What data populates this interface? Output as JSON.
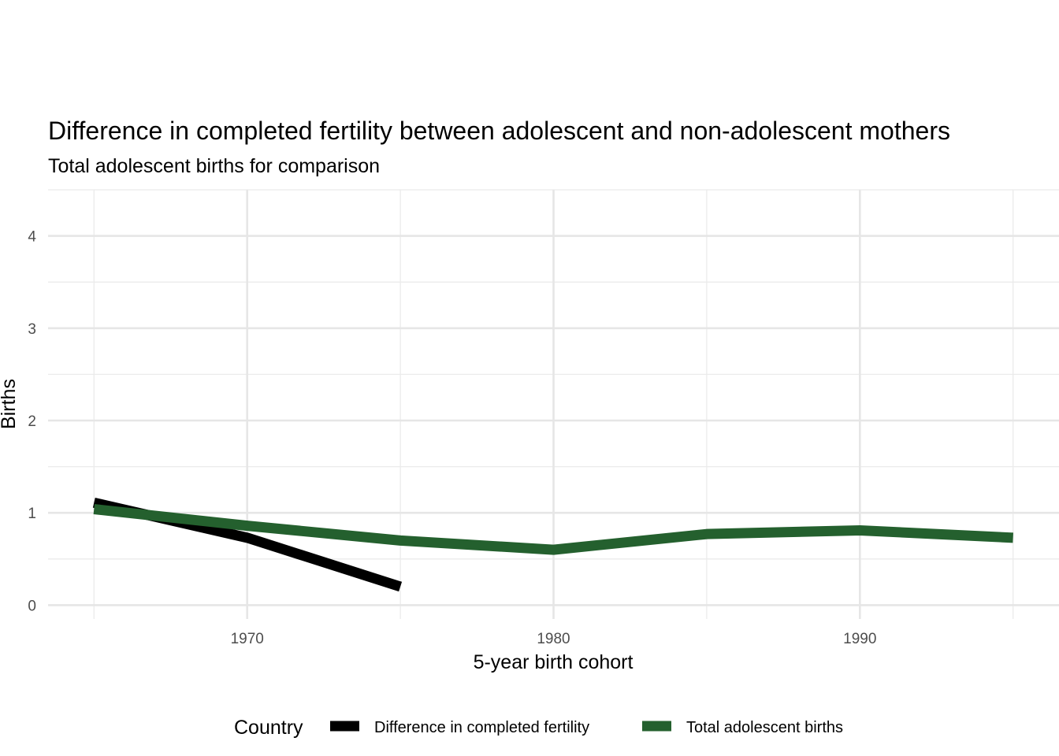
{
  "chart_data": {
    "type": "line",
    "title": "Difference in completed fertility between adolescent and non-adolescent mothers",
    "subtitle": "Total adolescent births for comparison",
    "xlabel": "5-year birth cohort",
    "ylabel": "Births",
    "xlim": [
      1963.5,
      1996.5
    ],
    "ylim": [
      -0.15,
      4.5
    ],
    "x_ticks": [
      1970,
      1980,
      1990
    ],
    "y_ticks": [
      0,
      1,
      2,
      3,
      4
    ],
    "grid": true,
    "legend": {
      "title": "Country",
      "position": "bottom"
    },
    "series": [
      {
        "name": "Difference in completed fertility",
        "color": "#000000",
        "x": [
          1965,
          1970,
          1975
        ],
        "y": [
          1.11,
          0.73,
          0.2
        ]
      },
      {
        "name": "Total adolescent births",
        "color": "#24602e",
        "x": [
          1965,
          1970,
          1975,
          1980,
          1985,
          1990,
          1995
        ],
        "y": [
          1.04,
          0.86,
          0.7,
          0.6,
          0.77,
          0.81,
          0.73
        ]
      }
    ]
  }
}
